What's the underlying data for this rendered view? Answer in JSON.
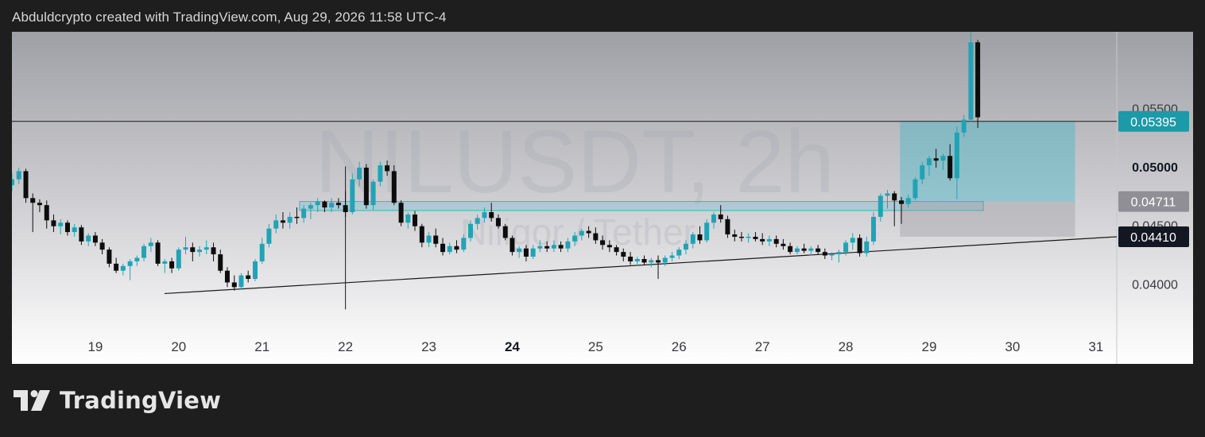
{
  "header": {
    "caption": "Abduldcrypto created with TradingView.com, Aug 29, 2026 11:58 UTC-4"
  },
  "watermark": {
    "symbol": "NILUSDT, 2h",
    "name": "Niligor / Tether"
  },
  "footer": {
    "brand": "TradingView"
  },
  "colors": {
    "up": "#22a3b5",
    "down": "#0c0c0c",
    "zone": "#33b6c7",
    "accent_badge": "#1c9aa8",
    "dark_badge": "#131722",
    "gray_badge": "#8f8f95"
  },
  "chart_data": {
    "type": "candlestick",
    "symbol": "NILUSDT",
    "timeframe": "2h",
    "x_ticks": [
      {
        "label": "19",
        "day": 19,
        "bold": false
      },
      {
        "label": "20",
        "day": 20,
        "bold": false
      },
      {
        "label": "21",
        "day": 21,
        "bold": false
      },
      {
        "label": "22",
        "day": 22,
        "bold": false
      },
      {
        "label": "23",
        "day": 23,
        "bold": false
      },
      {
        "label": "24",
        "day": 24,
        "bold": true
      },
      {
        "label": "25",
        "day": 25,
        "bold": false
      },
      {
        "label": "26",
        "day": 26,
        "bold": false
      },
      {
        "label": "27",
        "day": 27,
        "bold": false
      },
      {
        "label": "28",
        "day": 28,
        "bold": false
      },
      {
        "label": "29",
        "day": 29,
        "bold": false
      },
      {
        "label": "30",
        "day": 30,
        "bold": false
      },
      {
        "label": "31",
        "day": 31,
        "bold": false
      }
    ],
    "y_ticks": [
      {
        "value": 0.055,
        "label": "0.05500",
        "bold": false
      },
      {
        "value": 0.05,
        "label": "0.05000",
        "bold": true
      },
      {
        "value": 0.045,
        "label": "0.04500",
        "bold": false
      },
      {
        "value": 0.04,
        "label": "0.04000",
        "bold": false
      }
    ],
    "ylim": [
      0.0365,
      0.0616
    ],
    "xlim": [
      18.0,
      31.25
    ],
    "price_badges": [
      {
        "value": 0.05395,
        "label": "0.05395",
        "style": "accent"
      },
      {
        "value": 0.04711,
        "label": "0.04711",
        "style": "gray"
      },
      {
        "value": 0.0441,
        "label": "0.04410",
        "style": "dark"
      }
    ],
    "horizontal_line": {
      "value": 0.05395
    },
    "trendline": {
      "x1": 19.83,
      "y1": 0.03925,
      "x2": 31.25,
      "y2": 0.0441
    },
    "spike_wick": {
      "x": 22.0,
      "high": 0.0501,
      "low": 0.0379
    },
    "zones": [
      {
        "name": "breakout-zone",
        "x1": 21.45,
        "x2": 29.65,
        "y_top": 0.04711,
        "y_bottom": 0.04634,
        "kind": "support"
      },
      {
        "name": "target-zone",
        "x1": 28.65,
        "x2": 30.75,
        "y_top": 0.05395,
        "y_bottom": 0.04711,
        "kind": "profit"
      },
      {
        "name": "stop-zone",
        "x1": 28.65,
        "x2": 30.75,
        "y_top": 0.04711,
        "y_bottom": 0.0441,
        "kind": "loss"
      }
    ],
    "candles": [
      [
        18.0,
        0.0485,
        0.0495,
        0.048,
        0.049
      ],
      [
        18.083,
        0.049,
        0.05,
        0.0486,
        0.0497
      ],
      [
        18.167,
        0.0497,
        0.0499,
        0.047,
        0.0474
      ],
      [
        18.25,
        0.0474,
        0.0478,
        0.0445,
        0.047
      ],
      [
        18.333,
        0.047,
        0.0473,
        0.0462,
        0.0468
      ],
      [
        18.417,
        0.0468,
        0.0472,
        0.0448,
        0.0455
      ],
      [
        18.5,
        0.0455,
        0.046,
        0.0445,
        0.045
      ],
      [
        18.583,
        0.045,
        0.0456,
        0.0443,
        0.0453
      ],
      [
        18.667,
        0.0453,
        0.0455,
        0.0442,
        0.0445
      ],
      [
        18.75,
        0.0445,
        0.0452,
        0.0441,
        0.0449
      ],
      [
        18.833,
        0.0449,
        0.0451,
        0.0434,
        0.0437
      ],
      [
        18.917,
        0.0437,
        0.0444,
        0.0433,
        0.0442
      ],
      [
        19.0,
        0.0442,
        0.0445,
        0.0433,
        0.0436
      ],
      [
        19.083,
        0.0436,
        0.0439,
        0.0426,
        0.043
      ],
      [
        19.167,
        0.043,
        0.0432,
        0.0415,
        0.0418
      ],
      [
        19.25,
        0.0418,
        0.0423,
        0.041,
        0.0412
      ],
      [
        19.333,
        0.0412,
        0.0418,
        0.0408,
        0.0416
      ],
      [
        19.417,
        0.0416,
        0.0422,
        0.0404,
        0.042
      ],
      [
        19.5,
        0.042,
        0.0425,
        0.0416,
        0.0423
      ],
      [
        19.583,
        0.0423,
        0.0435,
        0.042,
        0.0433
      ],
      [
        19.667,
        0.0433,
        0.044,
        0.0428,
        0.0436
      ],
      [
        19.75,
        0.0436,
        0.0438,
        0.0416,
        0.0418
      ],
      [
        19.833,
        0.0418,
        0.0422,
        0.041,
        0.042
      ],
      [
        19.917,
        0.042,
        0.0423,
        0.041,
        0.0414
      ],
      [
        20.0,
        0.0414,
        0.0432,
        0.0412,
        0.043
      ],
      [
        20.083,
        0.043,
        0.0441,
        0.0426,
        0.0432
      ],
      [
        20.167,
        0.0432,
        0.0436,
        0.042,
        0.0428
      ],
      [
        20.25,
        0.0428,
        0.0433,
        0.0424,
        0.043
      ],
      [
        20.333,
        0.043,
        0.0438,
        0.0426,
        0.0432
      ],
      [
        20.417,
        0.0432,
        0.0436,
        0.042,
        0.0426
      ],
      [
        20.5,
        0.0426,
        0.043,
        0.041,
        0.0412
      ],
      [
        20.583,
        0.0412,
        0.0415,
        0.0398,
        0.0402
      ],
      [
        20.667,
        0.0402,
        0.0408,
        0.0395,
        0.0398
      ],
      [
        20.75,
        0.0398,
        0.041,
        0.0396,
        0.0408
      ],
      [
        20.833,
        0.0408,
        0.0412,
        0.0402,
        0.0405
      ],
      [
        20.917,
        0.0405,
        0.0422,
        0.0403,
        0.042
      ],
      [
        21.0,
        0.042,
        0.044,
        0.0418,
        0.0435
      ],
      [
        21.083,
        0.0435,
        0.0452,
        0.0432,
        0.0448
      ],
      [
        21.167,
        0.0448,
        0.046,
        0.0444,
        0.0455
      ],
      [
        21.25,
        0.0455,
        0.0462,
        0.0448,
        0.0453
      ],
      [
        21.333,
        0.0453,
        0.0462,
        0.0448,
        0.0458
      ],
      [
        21.417,
        0.0458,
        0.0466,
        0.0452,
        0.0457
      ],
      [
        21.5,
        0.0457,
        0.0468,
        0.0453,
        0.0465
      ],
      [
        21.583,
        0.0465,
        0.047,
        0.0456,
        0.0468
      ],
      [
        21.667,
        0.0468,
        0.0474,
        0.0462,
        0.0471
      ],
      [
        21.75,
        0.0471,
        0.0472,
        0.0462,
        0.0466
      ],
      [
        21.833,
        0.0466,
        0.0474,
        0.0462,
        0.047
      ],
      [
        21.917,
        0.047,
        0.0474,
        0.0465,
        0.0468
      ],
      [
        22.0,
        0.0468,
        0.048,
        0.0458,
        0.0462
      ],
      [
        22.083,
        0.0462,
        0.0495,
        0.046,
        0.049
      ],
      [
        22.167,
        0.049,
        0.0505,
        0.0484,
        0.05
      ],
      [
        22.25,
        0.05,
        0.0503,
        0.0465,
        0.0468
      ],
      [
        22.333,
        0.0468,
        0.049,
        0.0464,
        0.0488
      ],
      [
        22.417,
        0.0488,
        0.0505,
        0.0484,
        0.0502
      ],
      [
        22.5,
        0.0502,
        0.0506,
        0.0493,
        0.0497
      ],
      [
        22.583,
        0.0497,
        0.0502,
        0.0468,
        0.047
      ],
      [
        22.667,
        0.047,
        0.0472,
        0.045,
        0.0453
      ],
      [
        22.75,
        0.0453,
        0.0462,
        0.0448,
        0.046
      ],
      [
        22.833,
        0.046,
        0.0463,
        0.0446,
        0.045
      ],
      [
        22.917,
        0.045,
        0.0452,
        0.0432,
        0.0436
      ],
      [
        23.0,
        0.0436,
        0.0445,
        0.0432,
        0.0442
      ],
      [
        23.083,
        0.0442,
        0.0448,
        0.0432,
        0.0435
      ],
      [
        23.167,
        0.0435,
        0.044,
        0.0425,
        0.0428
      ],
      [
        23.25,
        0.0428,
        0.0436,
        0.0426,
        0.0433
      ],
      [
        23.333,
        0.0433,
        0.0438,
        0.0427,
        0.043
      ],
      [
        23.417,
        0.043,
        0.0443,
        0.0428,
        0.044
      ],
      [
        23.5,
        0.044,
        0.0455,
        0.0437,
        0.0452
      ],
      [
        23.583,
        0.0452,
        0.046,
        0.0447,
        0.0457
      ],
      [
        23.667,
        0.0457,
        0.0466,
        0.0453,
        0.0462
      ],
      [
        23.75,
        0.0462,
        0.047,
        0.0454,
        0.0457
      ],
      [
        23.833,
        0.0457,
        0.046,
        0.0448,
        0.045
      ],
      [
        23.917,
        0.045,
        0.0452,
        0.0438,
        0.044
      ],
      [
        24.0,
        0.044,
        0.0442,
        0.0425,
        0.0428
      ],
      [
        24.083,
        0.0428,
        0.0433,
        0.0423,
        0.0431
      ],
      [
        24.167,
        0.0431,
        0.0434,
        0.042,
        0.0424
      ],
      [
        24.25,
        0.0424,
        0.0434,
        0.0422,
        0.0431
      ],
      [
        24.333,
        0.0431,
        0.0438,
        0.0428,
        0.0433
      ],
      [
        24.417,
        0.0433,
        0.0437,
        0.0428,
        0.0431
      ],
      [
        24.5,
        0.0431,
        0.0438,
        0.0428,
        0.0434
      ],
      [
        24.583,
        0.0434,
        0.0437,
        0.0428,
        0.0431
      ],
      [
        24.667,
        0.0431,
        0.044,
        0.0428,
        0.0437
      ],
      [
        24.75,
        0.0437,
        0.0445,
        0.0433,
        0.0442
      ],
      [
        24.833,
        0.0442,
        0.0448,
        0.0438,
        0.0446
      ],
      [
        24.917,
        0.0446,
        0.045,
        0.044,
        0.0444
      ],
      [
        25.0,
        0.0444,
        0.0449,
        0.0435,
        0.0438
      ],
      [
        25.083,
        0.0438,
        0.0442,
        0.043,
        0.0434
      ],
      [
        25.167,
        0.0434,
        0.0438,
        0.0428,
        0.0432
      ],
      [
        25.25,
        0.0432,
        0.0434,
        0.0425,
        0.0428
      ],
      [
        25.333,
        0.0428,
        0.0431,
        0.042,
        0.0424
      ],
      [
        25.417,
        0.0424,
        0.0428,
        0.0417,
        0.042
      ],
      [
        25.5,
        0.042,
        0.0424,
        0.0416,
        0.0422
      ],
      [
        25.583,
        0.0422,
        0.0425,
        0.0417,
        0.0419
      ],
      [
        25.667,
        0.0419,
        0.0423,
        0.0415,
        0.0421
      ],
      [
        25.75,
        0.0421,
        0.0425,
        0.0405,
        0.0419
      ],
      [
        25.833,
        0.0419,
        0.0425,
        0.0416,
        0.0423
      ],
      [
        25.917,
        0.0423,
        0.0428,
        0.042,
        0.0425
      ],
      [
        26.0,
        0.0425,
        0.0432,
        0.0422,
        0.043
      ],
      [
        26.083,
        0.043,
        0.0438,
        0.0426,
        0.0435
      ],
      [
        26.167,
        0.0435,
        0.0445,
        0.0431,
        0.0443
      ],
      [
        26.25,
        0.0443,
        0.045,
        0.0435,
        0.0438
      ],
      [
        26.333,
        0.0438,
        0.0456,
        0.0436,
        0.0453
      ],
      [
        26.417,
        0.0453,
        0.0462,
        0.0448,
        0.046
      ],
      [
        26.5,
        0.046,
        0.0468,
        0.0453,
        0.0456
      ],
      [
        26.583,
        0.0456,
        0.0459,
        0.044,
        0.0443
      ],
      [
        26.667,
        0.0443,
        0.0447,
        0.0437,
        0.0441
      ],
      [
        26.75,
        0.0441,
        0.0445,
        0.0437,
        0.044
      ],
      [
        26.833,
        0.044,
        0.0444,
        0.0436,
        0.0441
      ],
      [
        26.917,
        0.0441,
        0.0445,
        0.0437,
        0.0439
      ],
      [
        27.0,
        0.0439,
        0.0444,
        0.0434,
        0.0437
      ],
      [
        27.083,
        0.0437,
        0.0442,
        0.0433,
        0.0439
      ],
      [
        27.167,
        0.0439,
        0.0442,
        0.0432,
        0.0435
      ],
      [
        27.25,
        0.0435,
        0.0439,
        0.043,
        0.0433
      ],
      [
        27.333,
        0.0433,
        0.0436,
        0.0426,
        0.0428
      ],
      [
        27.417,
        0.0428,
        0.0433,
        0.0426,
        0.0431
      ],
      [
        27.5,
        0.0431,
        0.0435,
        0.0427,
        0.0429
      ],
      [
        27.583,
        0.0429,
        0.0433,
        0.0425,
        0.0431
      ],
      [
        27.667,
        0.0431,
        0.0434,
        0.0426,
        0.0428
      ],
      [
        27.75,
        0.0428,
        0.0431,
        0.0422,
        0.0425
      ],
      [
        27.833,
        0.0425,
        0.0428,
        0.0421,
        0.0426
      ],
      [
        27.917,
        0.0426,
        0.043,
        0.0419,
        0.0428
      ],
      [
        28.0,
        0.0428,
        0.0438,
        0.0425,
        0.0436
      ],
      [
        28.083,
        0.0436,
        0.0444,
        0.043,
        0.044
      ],
      [
        28.167,
        0.044,
        0.0443,
        0.0424,
        0.0427
      ],
      [
        28.25,
        0.0427,
        0.0441,
        0.0424,
        0.0437
      ],
      [
        28.333,
        0.0437,
        0.0462,
        0.0434,
        0.0458
      ],
      [
        28.417,
        0.0458,
        0.0478,
        0.0454,
        0.0476
      ],
      [
        28.5,
        0.0476,
        0.0481,
        0.0465,
        0.0478
      ],
      [
        28.583,
        0.0478,
        0.048,
        0.045,
        0.0472
      ],
      [
        28.667,
        0.0472,
        0.0475,
        0.0452,
        0.0469
      ],
      [
        28.75,
        0.0469,
        0.0477,
        0.0466,
        0.0474
      ],
      [
        28.833,
        0.0474,
        0.0492,
        0.0472,
        0.049
      ],
      [
        28.917,
        0.049,
        0.0505,
        0.0486,
        0.0502
      ],
      [
        29.0,
        0.0502,
        0.051,
        0.0493,
        0.0508
      ],
      [
        29.083,
        0.0508,
        0.0516,
        0.05,
        0.0506
      ],
      [
        29.167,
        0.0506,
        0.0512,
        0.0498,
        0.051
      ],
      [
        29.25,
        0.051,
        0.052,
        0.0489,
        0.0491
      ],
      [
        29.333,
        0.0491,
        0.0535,
        0.0473,
        0.053
      ],
      [
        29.417,
        0.053,
        0.0545,
        0.0526,
        0.0541
      ],
      [
        29.5,
        0.0541,
        0.0617,
        0.0539,
        0.0607
      ],
      [
        29.583,
        0.0607,
        0.0609,
        0.0534,
        0.0543
      ]
    ]
  }
}
